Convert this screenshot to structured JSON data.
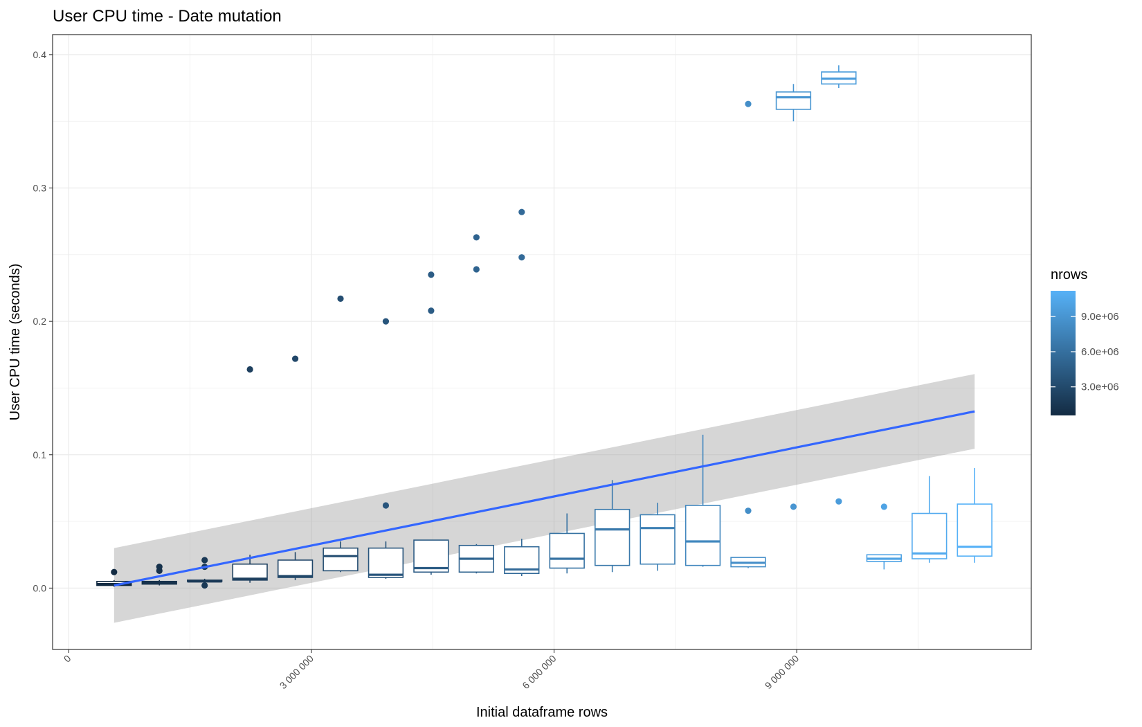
{
  "chart_data": {
    "type": "boxplot",
    "title": "User CPU time - Date mutation",
    "xlabel": "Initial dataframe rows",
    "ylabel": "User CPU time (seconds)",
    "xlim": [
      -200000,
      11900000
    ],
    "ylim": [
      -0.046,
      0.415
    ],
    "x_ticks": [
      {
        "value": 0,
        "label": "0"
      },
      {
        "value": 3000000,
        "label": "3 000 000"
      },
      {
        "value": 6000000,
        "label": "6 000 000"
      },
      {
        "value": 9000000,
        "label": "9 000 000"
      }
    ],
    "y_ticks": [
      {
        "value": 0.0,
        "label": "0.0"
      },
      {
        "value": 0.1,
        "label": "0.1"
      },
      {
        "value": 0.2,
        "label": "0.2"
      },
      {
        "value": 0.3,
        "label": "0.3"
      },
      {
        "value": 0.4,
        "label": "0.4"
      }
    ],
    "grid": true,
    "color_scale": {
      "variable": "nrows",
      "low_color": "#132B43",
      "high_color": "#56B1F7",
      "range": [
        560000,
        11200000
      ],
      "ticks": [
        {
          "value": 3000000,
          "label": "3.0e+06"
        },
        {
          "value": 6000000,
          "label": "6.0e+06"
        },
        {
          "value": 9000000,
          "label": "9.0e+06"
        }
      ],
      "legend_position": "right"
    },
    "boxes": [
      {
        "x": 560000,
        "lower": 0.001,
        "q1": 0.002,
        "median": 0.003,
        "q3": 0.005,
        "upper": 0.006,
        "outliers": [
          0.012
        ]
      },
      {
        "x": 1120000,
        "lower": 0.002,
        "q1": 0.003,
        "median": 0.004,
        "q3": 0.005,
        "upper": 0.006,
        "outliers": [
          0.013,
          0.016
        ]
      },
      {
        "x": 1680000,
        "lower": 0.004,
        "q1": 0.005,
        "median": 0.005,
        "q3": 0.006,
        "upper": 0.007,
        "outliers": [
          0.002,
          0.016,
          0.021
        ]
      },
      {
        "x": 2240000,
        "lower": 0.004,
        "q1": 0.006,
        "median": 0.007,
        "q3": 0.018,
        "upper": 0.025,
        "outliers": [
          0.164
        ]
      },
      {
        "x": 2800000,
        "lower": 0.006,
        "q1": 0.008,
        "median": 0.009,
        "q3": 0.021,
        "upper": 0.027,
        "outliers": [
          0.172
        ]
      },
      {
        "x": 3360000,
        "lower": 0.012,
        "q1": 0.013,
        "median": 0.024,
        "q3": 0.03,
        "upper": 0.035,
        "outliers": [
          0.217
        ]
      },
      {
        "x": 3920000,
        "lower": 0.007,
        "q1": 0.008,
        "median": 0.01,
        "q3": 0.03,
        "upper": 0.035,
        "outliers": [
          0.062,
          0.2
        ]
      },
      {
        "x": 4480000,
        "lower": 0.01,
        "q1": 0.012,
        "median": 0.015,
        "q3": 0.036,
        "upper": 0.036,
        "outliers": [
          0.208,
          0.235
        ]
      },
      {
        "x": 5040000,
        "lower": 0.011,
        "q1": 0.012,
        "median": 0.022,
        "q3": 0.032,
        "upper": 0.033,
        "outliers": [
          0.239,
          0.263
        ]
      },
      {
        "x": 5600000,
        "lower": 0.009,
        "q1": 0.011,
        "median": 0.014,
        "q3": 0.031,
        "upper": 0.037,
        "outliers": [
          0.248,
          0.282
        ]
      },
      {
        "x": 6160000,
        "lower": 0.011,
        "q1": 0.015,
        "median": 0.022,
        "q3": 0.041,
        "upper": 0.056,
        "outliers": []
      },
      {
        "x": 6720000,
        "lower": 0.012,
        "q1": 0.017,
        "median": 0.044,
        "q3": 0.059,
        "upper": 0.081,
        "outliers": []
      },
      {
        "x": 7280000,
        "lower": 0.013,
        "q1": 0.018,
        "median": 0.045,
        "q3": 0.055,
        "upper": 0.064,
        "outliers": []
      },
      {
        "x": 7840000,
        "lower": 0.016,
        "q1": 0.017,
        "median": 0.035,
        "q3": 0.062,
        "upper": 0.115,
        "outliers": []
      },
      {
        "x": 8400000,
        "lower": 0.015,
        "q1": 0.016,
        "median": 0.019,
        "q3": 0.023,
        "upper": 0.023,
        "outliers": [
          0.058,
          0.363
        ]
      },
      {
        "x": 8960000,
        "lower": 0.35,
        "q1": 0.359,
        "median": 0.368,
        "q3": 0.372,
        "upper": 0.378,
        "outliers": [
          0.061
        ]
      },
      {
        "x": 9520000,
        "lower": 0.375,
        "q1": 0.378,
        "median": 0.382,
        "q3": 0.387,
        "upper": 0.392,
        "outliers": [
          0.065
        ]
      },
      {
        "x": 10080000,
        "lower": 0.014,
        "q1": 0.02,
        "median": 0.022,
        "q3": 0.025,
        "upper": 0.025,
        "outliers": [
          0.061
        ]
      },
      {
        "x": 10640000,
        "lower": 0.019,
        "q1": 0.022,
        "median": 0.026,
        "q3": 0.056,
        "upper": 0.084,
        "outliers": []
      },
      {
        "x": 11200000,
        "lower": 0.019,
        "q1": 0.024,
        "median": 0.031,
        "q3": 0.063,
        "upper": 0.09,
        "outliers": []
      }
    ],
    "smooth": {
      "method": "lm",
      "x_range": [
        560000,
        11200000
      ],
      "fit": [
        0.002,
        0.1325
      ],
      "ci_lower": [
        -0.026,
        0.1045
      ],
      "ci_upper": [
        0.03,
        0.1605
      ],
      "color": "#3366FF",
      "band_color": "#999999"
    }
  }
}
